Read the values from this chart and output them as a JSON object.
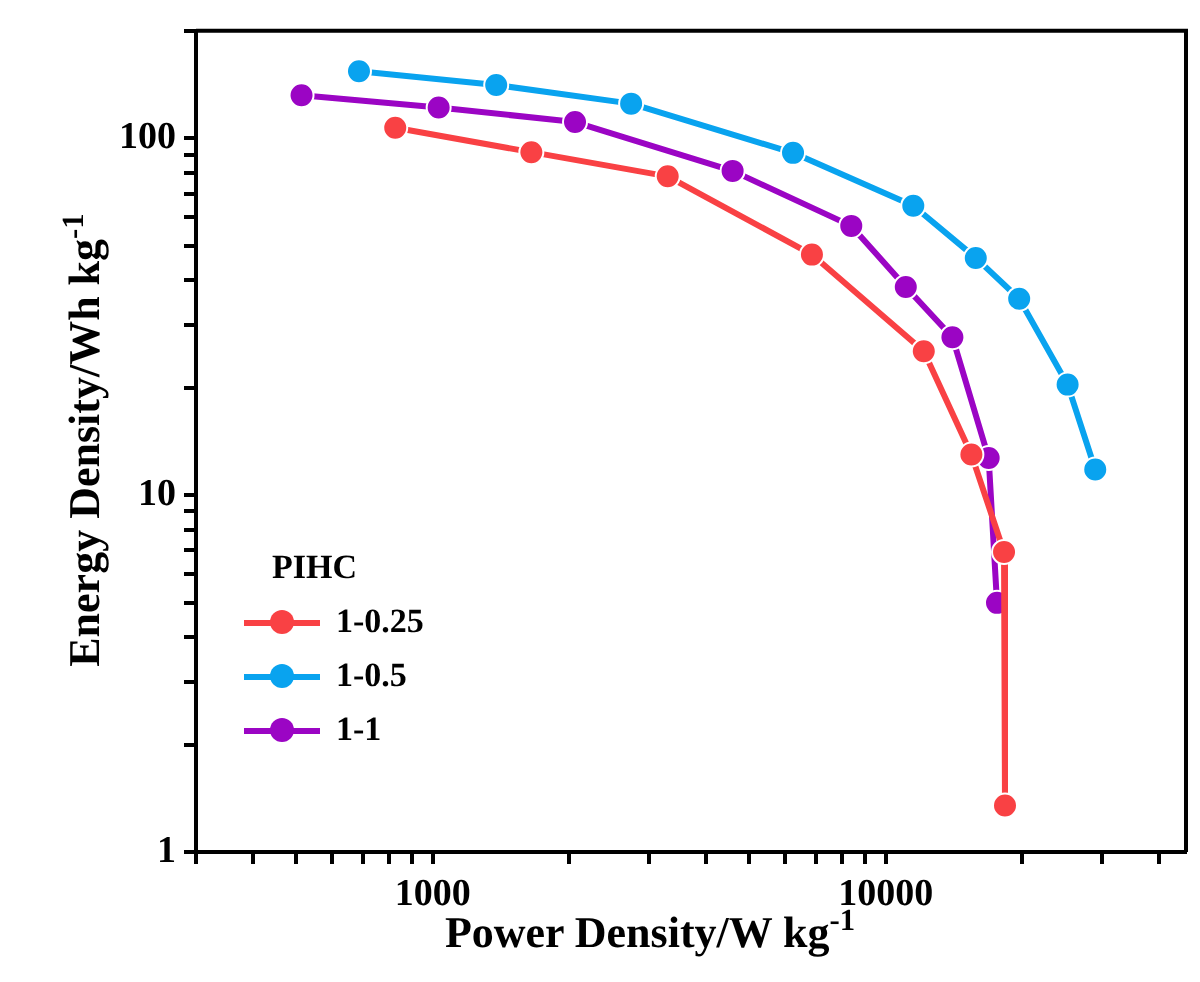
{
  "chart_data": {
    "type": "line",
    "xlabel": "Power Density/W kg$^{-1}$",
    "ylabel": "Energy Density/Wh kg$^{-1}$",
    "legend_title": "PIHC",
    "log": "xy",
    "xlim": [
      300,
      46000
    ],
    "ylim": [
      1,
      200
    ],
    "xticks": [
      {
        "value": 300,
        "label": null
      },
      {
        "value": 400,
        "label": null
      },
      {
        "value": 500,
        "label": null
      },
      {
        "value": 600,
        "label": null
      },
      {
        "value": 700,
        "label": null
      },
      {
        "value": 800,
        "label": null
      },
      {
        "value": 900,
        "label": null
      },
      1000,
      {
        "value": 2000,
        "label": null
      },
      {
        "value": 3000,
        "label": null
      },
      {
        "value": 4000,
        "label": null
      },
      {
        "value": 5000,
        "label": null
      },
      {
        "value": 6000,
        "label": null
      },
      {
        "value": 7000,
        "label": null
      },
      {
        "value": 8000,
        "label": null
      },
      {
        "value": 9000,
        "label": null
      },
      10000,
      {
        "value": 20000,
        "label": null
      },
      {
        "value": 30000,
        "label": null
      },
      {
        "value": 40000,
        "label": null
      }
    ],
    "yticks": [
      1,
      {
        "value": 2,
        "label": null
      },
      {
        "value": 3,
        "label": null
      },
      {
        "value": 4,
        "label": null
      },
      {
        "value": 5,
        "label": null
      },
      {
        "value": 6,
        "label": null
      },
      {
        "value": 7,
        "label": null
      },
      {
        "value": 8,
        "label": null
      },
      {
        "value": 9,
        "label": null
      },
      10,
      {
        "value": 20,
        "label": null
      },
      {
        "value": 30,
        "label": null
      },
      {
        "value": 40,
        "label": null
      },
      {
        "value": 50,
        "label": null
      },
      {
        "value": 60,
        "label": null
      },
      {
        "value": 70,
        "label": null
      },
      {
        "value": 80,
        "label": null
      },
      {
        "value": 90,
        "label": null
      },
      100,
      {
        "value": 200,
        "label": null
      }
    ],
    "grid": false,
    "legend": "bottom left",
    "marker": "circle",
    "line_style": "solid",
    "series": [
      {
        "name": "1-0.25",
        "color": "#f94144",
        "x": [
          826,
          1650,
          3300,
          6870,
          12130,
          15450,
          18240,
          18330
        ],
        "values": [
          107,
          91.4,
          78.2,
          47.2,
          25.3,
          13.0,
          6.93,
          1.35
        ]
      },
      {
        "name": "1-0.5",
        "color": "#09a3ef",
        "x": [
          687,
          1380,
          2740,
          6240,
          11500,
          15800,
          19700,
          25200,
          29000
        ],
        "values": [
          154,
          141,
          125,
          91,
          64.7,
          46.2,
          35.5,
          20.4,
          11.8
        ]
      },
      {
        "name": "1-1",
        "color": "#9b05c4",
        "x": [
          513,
          1030,
          2060,
          4590,
          8390,
          11070,
          14030,
          16870,
          17600
        ],
        "values": [
          132,
          122,
          111,
          81,
          56.8,
          38.3,
          27.7,
          12.7,
          4.99
        ]
      }
    ]
  }
}
